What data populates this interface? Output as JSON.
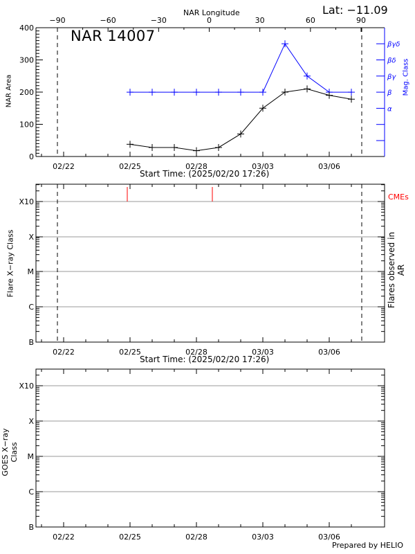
{
  "header": {
    "region_title": "NAR 14007",
    "latitude": "Lat: −11.09",
    "top_axis_label": "NAR Longitude",
    "footer": "Prepared by HELIO"
  },
  "colors": {
    "area_line": "#000000",
    "mag_class_line": "#0000ff",
    "cme_marker": "#ff0000",
    "grid": "#999999",
    "dashed_limb": "#000000"
  },
  "chart_data": [
    {
      "type": "line",
      "title": "NAR 14007",
      "xlabel": "Start Time: (2025/02/20 17:26)",
      "ylabel": "NAR Area",
      "y2label": "Mag. Class",
      "top_xlabel": "NAR Longitude",
      "annotation": "Lat: −11.09",
      "ylim": [
        0,
        400
      ],
      "yticks": [
        "0",
        "100",
        "200",
        "300",
        "400"
      ],
      "xticks": [
        "02/22",
        "02/25",
        "02/28",
        "03/03",
        "03/06"
      ],
      "top_xticks": [
        "−90",
        "−60",
        "−30",
        "0",
        "30",
        "60",
        "90"
      ],
      "y2ticks": [
        "α",
        "β",
        "βγ",
        "βδ",
        "βγδ"
      ],
      "grid": false,
      "limb_dashed_lines_longitude": [
        -90,
        90
      ],
      "x": [
        "02/25",
        "02/26",
        "02/27",
        "02/28",
        "03/01",
        "03/02",
        "03/03",
        "03/04",
        "03/05",
        "03/06",
        "03/07"
      ],
      "series": [
        {
          "name": "NAR Area",
          "color": "#000000",
          "values": [
            38,
            28,
            28,
            18,
            28,
            70,
            150,
            200,
            210,
            190,
            178
          ]
        },
        {
          "name": "Mag. Class",
          "color": "#0000ff",
          "values": [
            "β",
            "β",
            "β",
            "β",
            "β",
            "β",
            "β",
            "βγδ",
            "βγ",
            "β",
            "β"
          ]
        }
      ]
    },
    {
      "type": "scatter",
      "title": "Flares observed in AR",
      "xlabel": "Start Time: (2025/02/20 17:26)",
      "ylabel": "Flare X−ray Class",
      "y2label": "Flares observed in AR",
      "yticks": [
        "B",
        "C",
        "M",
        "X",
        "X10"
      ],
      "xticks": [
        "02/22",
        "02/25",
        "02/28",
        "03/03",
        "03/06"
      ],
      "grid": true,
      "legend": [
        "CMEs"
      ],
      "cme_times": [
        "02/24 ~23:00",
        "02/28 ~20:00"
      ],
      "flares": []
    },
    {
      "type": "line",
      "title": "",
      "xlabel": "",
      "ylabel": "GOES X−ray Class",
      "yticks": [
        "B",
        "C",
        "M",
        "X",
        "X10"
      ],
      "xticks": [
        "02/22",
        "02/25",
        "02/28",
        "03/03",
        "03/06"
      ],
      "grid": true,
      "series": []
    }
  ]
}
